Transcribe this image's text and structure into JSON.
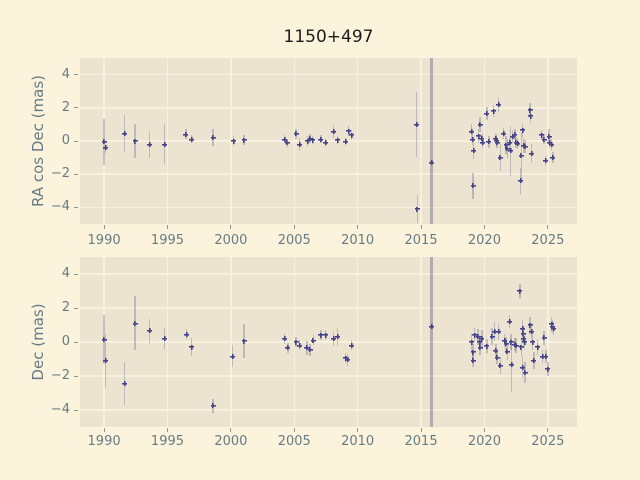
{
  "title": "1150+497",
  "colors": {
    "figure_bg": "#fcf3dd",
    "axes_bg": "#ece4d0",
    "grid": "#f8f1de",
    "text": "#657b83",
    "title_text": "#1c1c1c",
    "marker": "#45428c",
    "errorbar": "rgba(122,117,150,0.40)",
    "errorbar_heavy": "rgba(128,126,142,0.55)"
  },
  "chart_data": [
    {
      "type": "scatter",
      "title": "1150+497",
      "ylabel": "RA cos Dec (mas)",
      "xlabel": "",
      "marker_style": "plus",
      "grid": true,
      "xlim": [
        1988.1,
        2027.3
      ],
      "ylim": [
        -5,
        5
      ],
      "xticks": [
        1990,
        1995,
        2000,
        2005,
        2010,
        2015,
        2020,
        2025
      ],
      "yticks": [
        -4,
        -2,
        0,
        2,
        4
      ],
      "points_format": [
        "year",
        "offset_mas",
        "error_mas"
      ],
      "points": [
        [
          1990.0,
          -0.05,
          1.4
        ],
        [
          1990.1,
          -0.4,
          0.3
        ],
        [
          1991.6,
          0.45,
          1.1
        ],
        [
          1992.45,
          0.0,
          1.05
        ],
        [
          1993.6,
          -0.2,
          0.8
        ],
        [
          1994.75,
          -0.2,
          1.2
        ],
        [
          1996.45,
          0.4,
          0.3
        ],
        [
          1996.9,
          0.1,
          0.25
        ],
        [
          1998.6,
          0.2,
          0.5
        ],
        [
          2000.2,
          0.0,
          0.3
        ],
        [
          2001.05,
          0.05,
          0.3
        ],
        [
          2004.25,
          0.1,
          0.25
        ],
        [
          2004.45,
          -0.1,
          0.25
        ],
        [
          2005.15,
          0.45,
          0.3
        ],
        [
          2005.4,
          -0.2,
          0.4
        ],
        [
          2006.05,
          0.0,
          0.3
        ],
        [
          2006.25,
          0.15,
          0.25
        ],
        [
          2006.45,
          0.05,
          0.25
        ],
        [
          2007.1,
          0.1,
          0.25
        ],
        [
          2007.45,
          -0.1,
          0.25
        ],
        [
          2008.1,
          0.55,
          0.4
        ],
        [
          2008.4,
          0.05,
          0.25
        ],
        [
          2009.05,
          -0.05,
          0.25
        ],
        [
          2009.3,
          0.6,
          0.3
        ],
        [
          2009.5,
          0.35,
          0.3
        ],
        [
          2014.65,
          1.0,
          1.95
        ],
        [
          2014.7,
          -4.1,
          0.85
        ],
        [
          2015.85,
          -1.3,
          8.0
        ],
        [
          2019.0,
          0.55,
          0.45
        ],
        [
          2019.05,
          0.1,
          0.35
        ],
        [
          2019.15,
          -0.6,
          0.5
        ],
        [
          2019.1,
          -2.7,
          0.8
        ],
        [
          2019.55,
          0.3,
          0.4
        ],
        [
          2019.65,
          1.0,
          0.45
        ],
        [
          2019.8,
          0.15,
          0.3
        ],
        [
          2019.85,
          -0.1,
          0.3
        ],
        [
          2020.2,
          1.65,
          0.4
        ],
        [
          2020.35,
          -0.05,
          0.35
        ],
        [
          2020.7,
          1.8,
          0.35
        ],
        [
          2020.9,
          0.15,
          0.3
        ],
        [
          2020.95,
          0.0,
          0.3
        ],
        [
          2021.0,
          -0.1,
          0.3
        ],
        [
          2021.1,
          2.2,
          0.45
        ],
        [
          2021.25,
          -1.0,
          0.8
        ],
        [
          2021.5,
          0.45,
          0.35
        ],
        [
          2021.7,
          -0.25,
          0.55
        ],
        [
          2021.8,
          -0.45,
          0.6
        ],
        [
          2022.0,
          -0.1,
          0.3
        ],
        [
          2022.05,
          -0.6,
          1.5
        ],
        [
          2022.2,
          0.25,
          0.4
        ],
        [
          2022.4,
          0.4,
          0.35
        ],
        [
          2022.5,
          -0.1,
          0.35
        ],
        [
          2022.6,
          -0.15,
          0.35
        ],
        [
          2022.85,
          -2.4,
          0.8
        ],
        [
          2022.9,
          -0.9,
          1.4
        ],
        [
          2023.0,
          0.65,
          0.4
        ],
        [
          2023.1,
          -0.3,
          0.4
        ],
        [
          2023.2,
          -0.35,
          0.4
        ],
        [
          2023.6,
          1.85,
          0.45
        ],
        [
          2023.65,
          1.5,
          0.4
        ],
        [
          2023.7,
          -0.75,
          0.55
        ],
        [
          2024.5,
          0.35,
          0.3
        ],
        [
          2024.7,
          0.1,
          0.3
        ],
        [
          2024.8,
          -1.2,
          0.3
        ],
        [
          2025.1,
          0.25,
          0.5
        ],
        [
          2025.15,
          -0.1,
          0.35
        ],
        [
          2025.3,
          -0.2,
          0.35
        ],
        [
          2025.4,
          -1.0,
          0.35
        ]
      ]
    },
    {
      "type": "scatter",
      "title": "",
      "ylabel": "Dec (mas)",
      "xlabel": "",
      "marker_style": "plus",
      "grid": true,
      "xlim": [
        1988.1,
        2027.3
      ],
      "ylim": [
        -5,
        5
      ],
      "xticks": [
        1990,
        1995,
        2000,
        2005,
        2010,
        2015,
        2020,
        2025
      ],
      "yticks": [
        -4,
        -2,
        0,
        2,
        4
      ],
      "points_format": [
        "year",
        "offset_mas",
        "error_mas"
      ],
      "points": [
        [
          1990.0,
          0.15,
          1.45
        ],
        [
          1990.1,
          -1.1,
          1.6
        ],
        [
          1991.6,
          -2.45,
          1.25
        ],
        [
          1992.45,
          1.1,
          1.6
        ],
        [
          1993.6,
          0.65,
          0.7
        ],
        [
          1994.75,
          0.2,
          0.6
        ],
        [
          1996.5,
          0.45,
          0.3
        ],
        [
          1996.9,
          -0.3,
          0.55
        ],
        [
          1998.6,
          -3.75,
          0.4
        ],
        [
          2000.15,
          -0.85,
          0.65
        ],
        [
          2001.05,
          0.05,
          1.0
        ],
        [
          2004.25,
          0.2,
          0.3
        ],
        [
          2004.5,
          -0.35,
          0.3
        ],
        [
          2005.15,
          0.0,
          0.3
        ],
        [
          2005.4,
          -0.2,
          0.3
        ],
        [
          2006.0,
          -0.35,
          0.4
        ],
        [
          2006.25,
          -0.45,
          0.35
        ],
        [
          2006.5,
          0.1,
          0.3
        ],
        [
          2007.1,
          0.4,
          0.3
        ],
        [
          2007.45,
          0.4,
          0.3
        ],
        [
          2008.1,
          0.2,
          0.45
        ],
        [
          2008.4,
          0.3,
          0.55
        ],
        [
          2009.05,
          -0.95,
          0.3
        ],
        [
          2009.2,
          -1.05,
          0.35
        ],
        [
          2009.5,
          -0.2,
          0.3
        ],
        [
          2015.85,
          0.9,
          8.0
        ],
        [
          2019.0,
          0.0,
          0.5
        ],
        [
          2019.1,
          -0.6,
          0.5
        ],
        [
          2019.1,
          -1.1,
          0.35
        ],
        [
          2019.2,
          0.4,
          0.4
        ],
        [
          2019.5,
          0.3,
          0.45
        ],
        [
          2019.6,
          0.0,
          0.4
        ],
        [
          2019.65,
          -0.35,
          0.4
        ],
        [
          2019.8,
          0.2,
          0.5
        ],
        [
          2020.2,
          -0.25,
          0.4
        ],
        [
          2020.6,
          0.3,
          0.5
        ],
        [
          2020.8,
          0.6,
          0.55
        ],
        [
          2020.9,
          -0.5,
          0.4
        ],
        [
          2021.0,
          -0.9,
          0.4
        ],
        [
          2021.1,
          0.6,
          0.5
        ],
        [
          2021.25,
          -1.4,
          0.5
        ],
        [
          2021.6,
          0.1,
          0.4
        ],
        [
          2021.7,
          -0.1,
          0.4
        ],
        [
          2021.8,
          -0.55,
          0.5
        ],
        [
          2022.0,
          1.2,
          0.4
        ],
        [
          2022.1,
          0.0,
          0.45
        ],
        [
          2022.15,
          -1.35,
          1.6
        ],
        [
          2022.4,
          -0.15,
          0.4
        ],
        [
          2022.5,
          -0.2,
          0.45
        ],
        [
          2022.8,
          3.0,
          0.4
        ],
        [
          2022.9,
          -0.3,
          0.5
        ],
        [
          2023.0,
          0.8,
          0.5
        ],
        [
          2023.05,
          0.5,
          0.45
        ],
        [
          2023.1,
          0.2,
          0.4
        ],
        [
          2023.15,
          0.0,
          0.4
        ],
        [
          2023.0,
          -1.5,
          0.6
        ],
        [
          2023.2,
          -1.8,
          0.6
        ],
        [
          2023.6,
          1.0,
          0.5
        ],
        [
          2023.7,
          0.6,
          0.5
        ],
        [
          2023.8,
          0.0,
          0.45
        ],
        [
          2023.9,
          -1.1,
          0.5
        ],
        [
          2024.2,
          -0.3,
          0.45
        ],
        [
          2024.6,
          -0.85,
          0.4
        ],
        [
          2024.7,
          0.25,
          0.4
        ],
        [
          2024.85,
          -0.85,
          0.4
        ],
        [
          2025.0,
          -1.6,
          0.4
        ],
        [
          2025.3,
          1.05,
          0.45
        ],
        [
          2025.35,
          0.9,
          0.4
        ],
        [
          2025.45,
          0.8,
          0.4
        ]
      ]
    }
  ]
}
